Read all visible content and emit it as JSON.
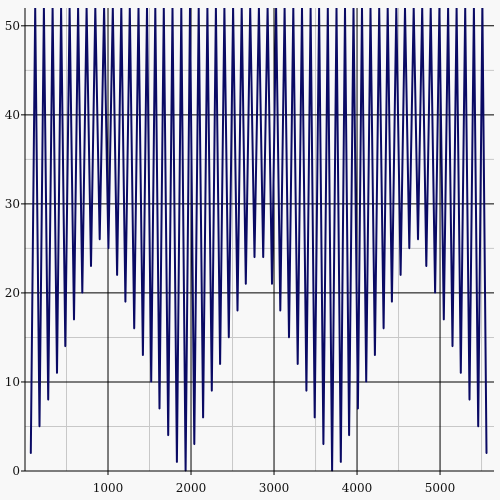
{
  "chart_data": {
    "type": "line",
    "title": "",
    "xlabel": "",
    "ylabel": "",
    "xlim": [
      0,
      5650
    ],
    "ylim": [
      0,
      52
    ],
    "x_ticks": [
      1000,
      2000,
      3000,
      4000,
      5000
    ],
    "y_ticks": [
      0,
      10,
      20,
      30,
      40,
      50
    ],
    "grid": true,
    "legend": "none",
    "colors": {
      "line": "#0a0a64",
      "background": "#f8f8f8",
      "major_grid": "#000000",
      "minor_grid": "#c8c8c8"
    },
    "series": [
      {
        "minima": [
          {
            "x": 70,
            "y": 2
          },
          {
            "x": 175,
            "y": 5
          },
          {
            "x": 280,
            "y": 8
          },
          {
            "x": 385,
            "y": 11
          },
          {
            "x": 485,
            "y": 14
          },
          {
            "x": 590,
            "y": 17
          },
          {
            "x": 690,
            "y": 20
          },
          {
            "x": 795,
            "y": 23
          },
          {
            "x": 900,
            "y": 26
          },
          {
            "x": 1005,
            "y": 25
          },
          {
            "x": 1110,
            "y": 22
          },
          {
            "x": 1210,
            "y": 19
          },
          {
            "x": 1315,
            "y": 16
          },
          {
            "x": 1420,
            "y": 13
          },
          {
            "x": 1520,
            "y": 10
          },
          {
            "x": 1620,
            "y": 7
          },
          {
            "x": 1725,
            "y": 4
          },
          {
            "x": 1830,
            "y": 1
          },
          {
            "x": 1935,
            "y": 0
          },
          {
            "x": 2040,
            "y": 3
          },
          {
            "x": 2145,
            "y": 6
          },
          {
            "x": 2250,
            "y": 9
          },
          {
            "x": 2350,
            "y": 12
          },
          {
            "x": 2455,
            "y": 15
          },
          {
            "x": 2560,
            "y": 18
          },
          {
            "x": 2660,
            "y": 21
          },
          {
            "x": 2765,
            "y": 24
          },
          {
            "x": 2870,
            "y": 24
          },
          {
            "x": 2975,
            "y": 21
          },
          {
            "x": 3075,
            "y": 18
          },
          {
            "x": 3180,
            "y": 15
          },
          {
            "x": 3285,
            "y": 12
          },
          {
            "x": 3390,
            "y": 9
          },
          {
            "x": 3490,
            "y": 6
          },
          {
            "x": 3595,
            "y": 3
          },
          {
            "x": 3700,
            "y": 0
          },
          {
            "x": 3805,
            "y": 1
          },
          {
            "x": 3905,
            "y": 4
          },
          {
            "x": 4010,
            "y": 7
          },
          {
            "x": 4110,
            "y": 10
          },
          {
            "x": 4215,
            "y": 13
          },
          {
            "x": 4320,
            "y": 16
          },
          {
            "x": 4420,
            "y": 19
          },
          {
            "x": 4525,
            "y": 22
          },
          {
            "x": 4630,
            "y": 25
          },
          {
            "x": 4735,
            "y": 26
          },
          {
            "x": 4835,
            "y": 23
          },
          {
            "x": 4940,
            "y": 20
          },
          {
            "x": 5045,
            "y": 17
          },
          {
            "x": 5150,
            "y": 14
          },
          {
            "x": 5250,
            "y": 11
          },
          {
            "x": 5355,
            "y": 8
          },
          {
            "x": 5460,
            "y": 5
          },
          {
            "x": 5560,
            "y": 2
          }
        ],
        "peak_y": 52
      }
    ]
  }
}
